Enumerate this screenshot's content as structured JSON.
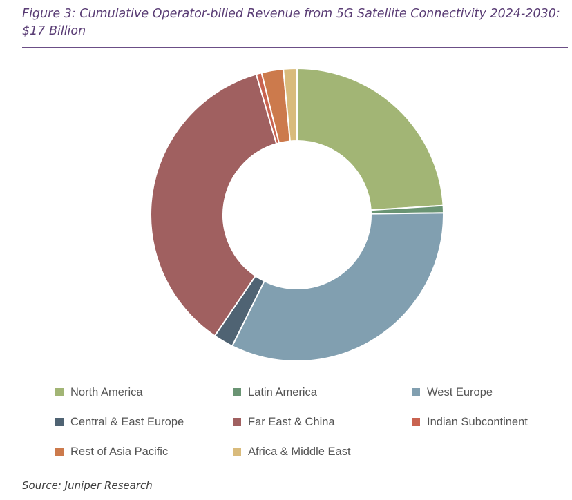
{
  "title": "Figure 3: Cumulative Operator-billed Revenue from 5G Satellite Connectivity 2024-2030: $17 Billion",
  "source": "Source: Juniper Research",
  "chart_data": {
    "type": "pie",
    "donut": true,
    "legend": "bottom",
    "slices": [
      {
        "label": "North America",
        "value": 24.0,
        "color": "#a2b575"
      },
      {
        "label": "Latin America",
        "value": 0.8,
        "color": "#6a9473"
      },
      {
        "label": "West Europe",
        "value": 32.5,
        "color": "#819fb0"
      },
      {
        "label": "Central & East Europe",
        "value": 2.2,
        "color": "#4f6373"
      },
      {
        "label": "Far East & China",
        "value": 36.0,
        "color": "#a06060"
      },
      {
        "label": "Indian Subcontinent",
        "value": 0.6,
        "color": "#c96350"
      },
      {
        "label": "Rest of Asia Pacific",
        "value": 2.4,
        "color": "#cc7a4c"
      },
      {
        "label": "Africa & Middle East",
        "value": 1.5,
        "color": "#d9bb7c"
      }
    ]
  }
}
